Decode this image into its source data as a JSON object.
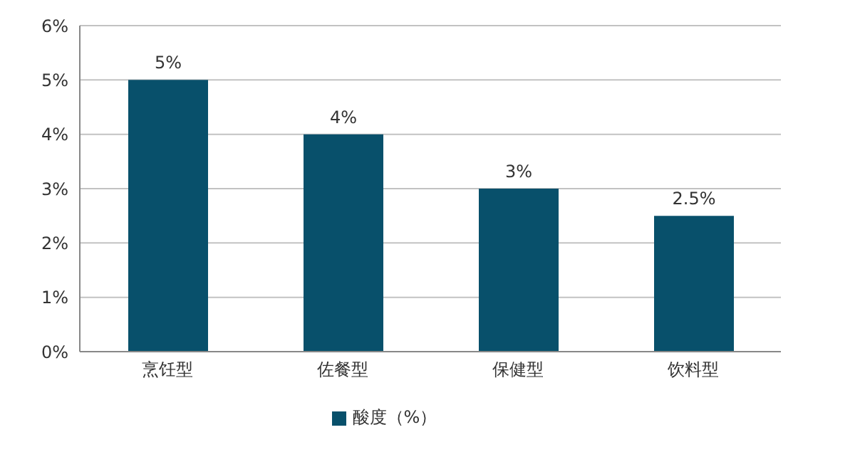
{
  "chart_data": {
    "type": "bar",
    "categories": [
      "烹饪型",
      "佐餐型",
      "保健型",
      "饮料型"
    ],
    "series": [
      {
        "name": "酸度（%）",
        "color": "#08506b",
        "values": [
          5,
          4,
          3,
          2.5
        ],
        "value_labels": [
          "5%",
          "4%",
          "3%",
          "2.5%"
        ]
      }
    ],
    "ylim": [
      0,
      6
    ],
    "yticks": [
      {
        "value": 0,
        "label": "0%"
      },
      {
        "value": 1,
        "label": "1%"
      },
      {
        "value": 2,
        "label": "2%"
      },
      {
        "value": 3,
        "label": "3%"
      },
      {
        "value": 4,
        "label": "4%"
      },
      {
        "value": 5,
        "label": "5%"
      },
      {
        "value": 6,
        "label": "6%"
      }
    ],
    "grid": "y",
    "legend": "bottom"
  }
}
